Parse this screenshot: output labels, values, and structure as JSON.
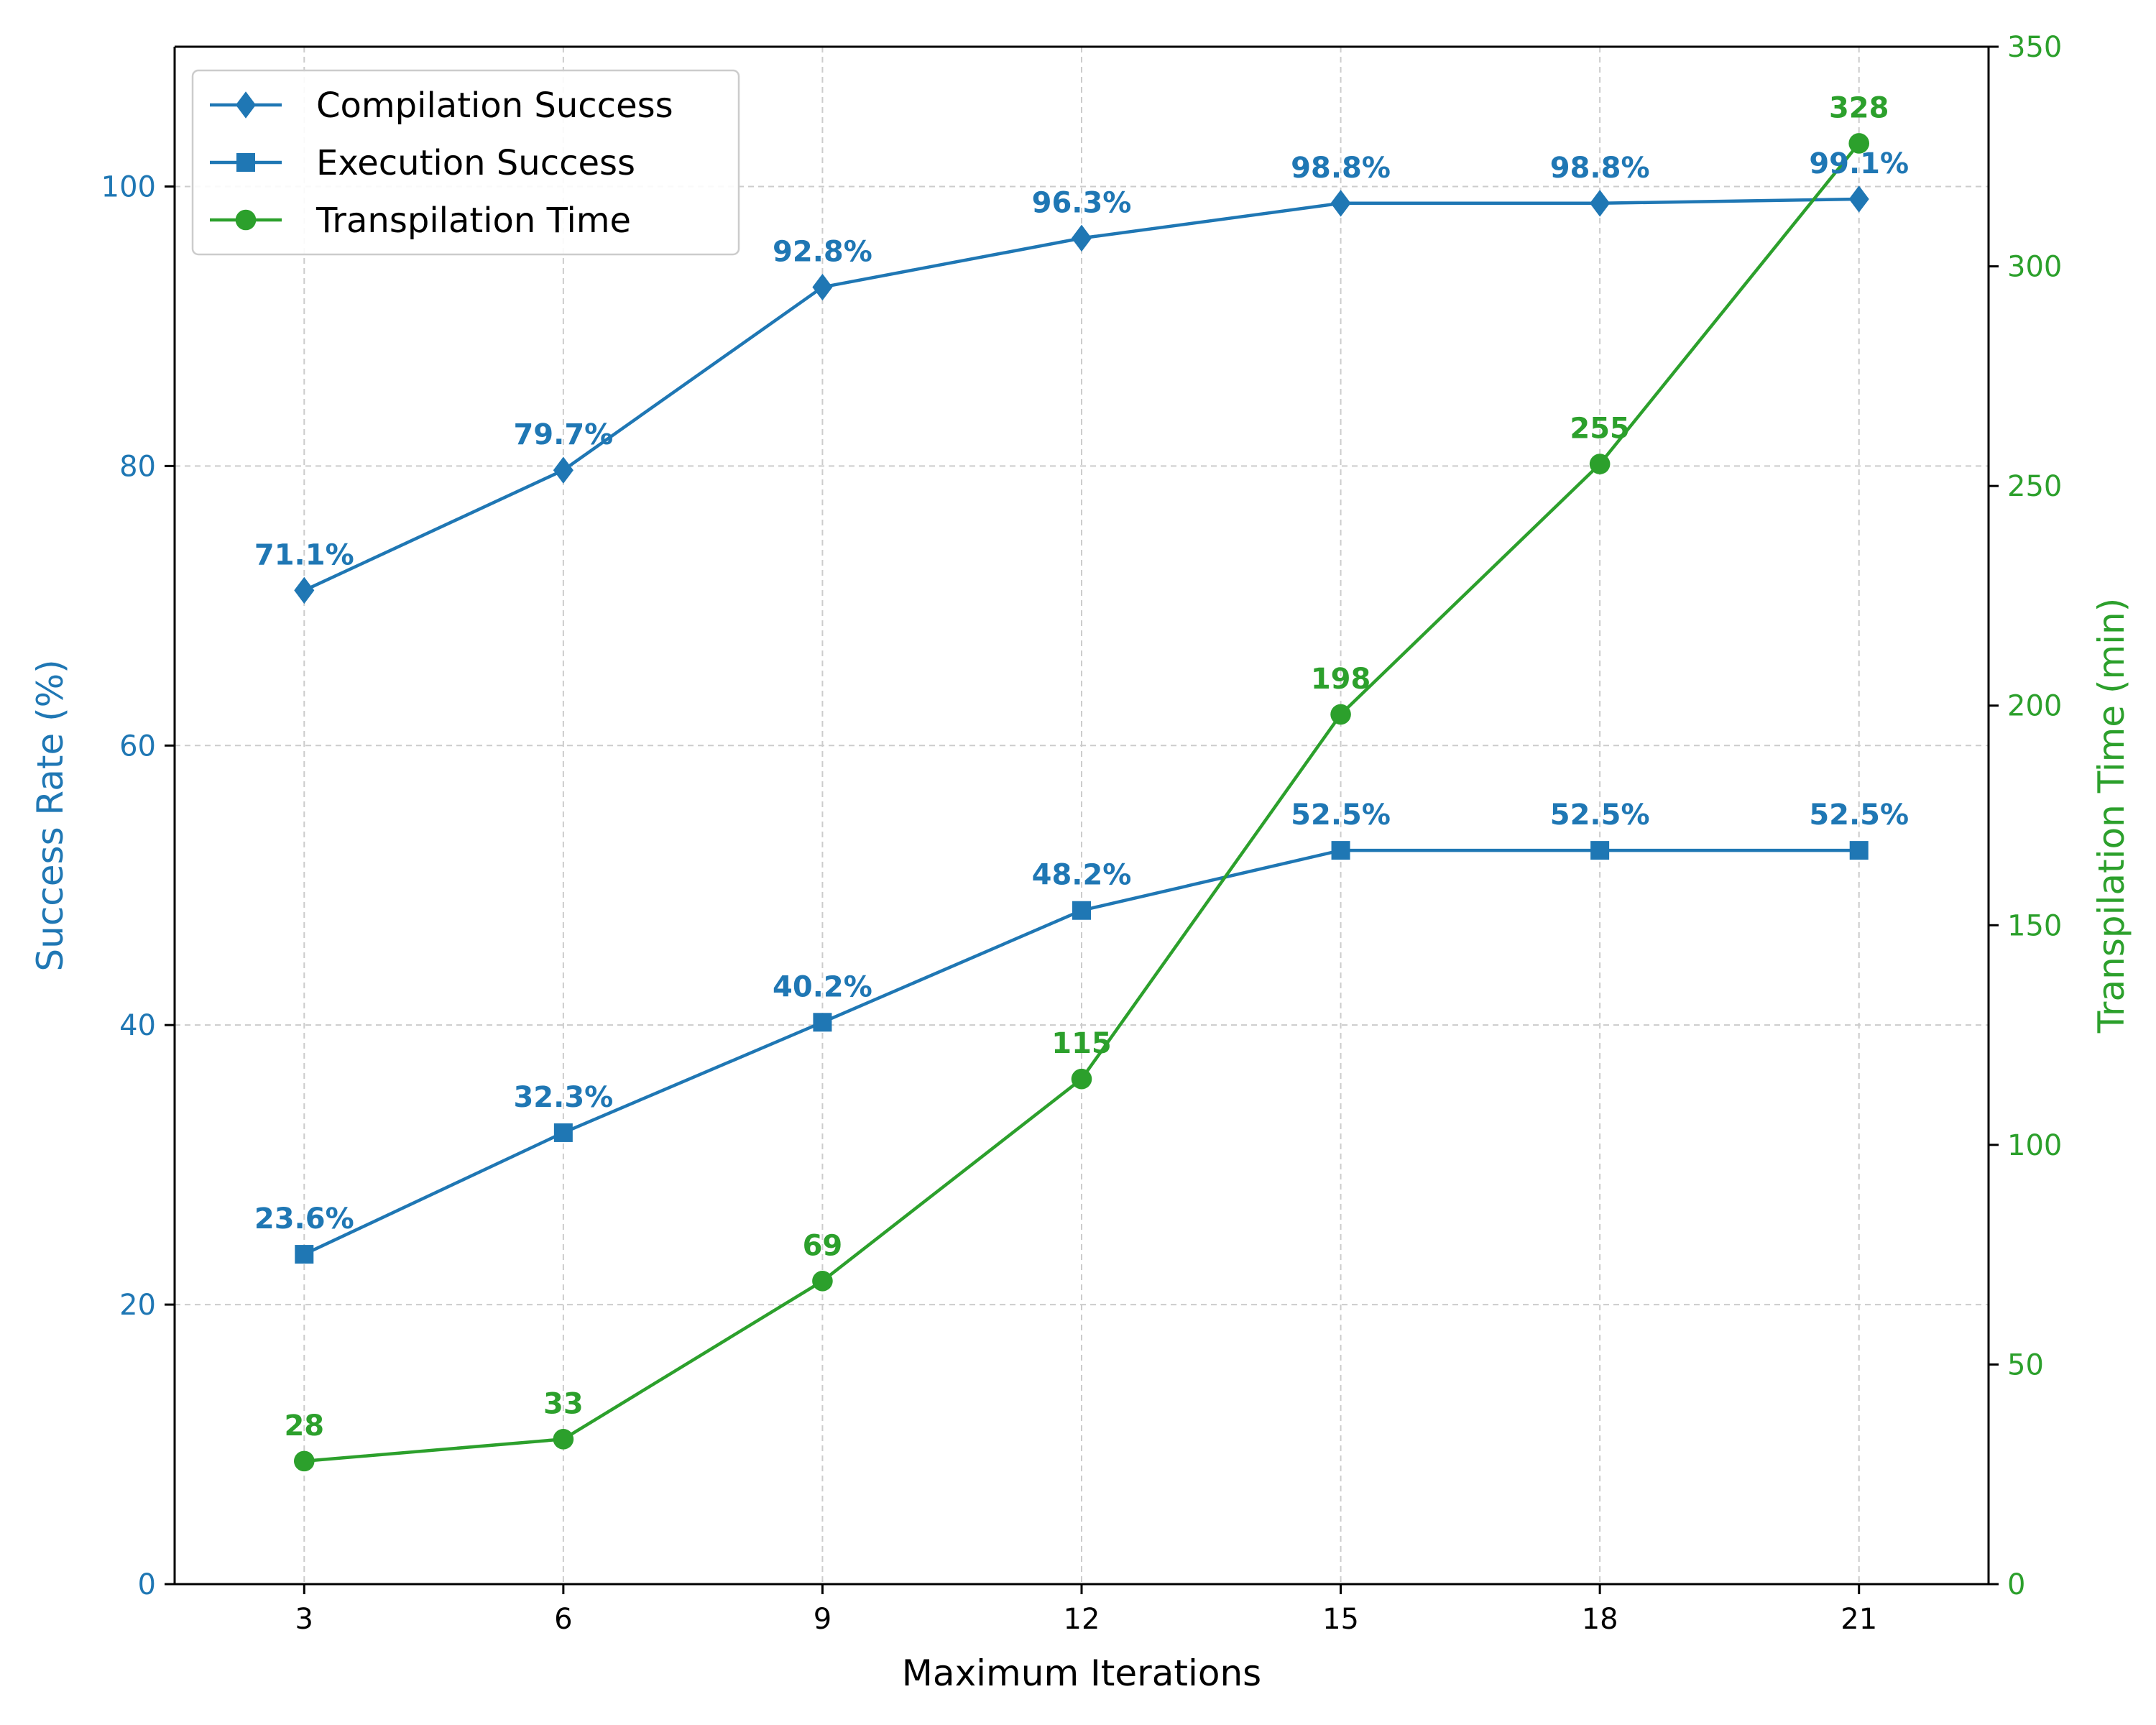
{
  "chart_data": {
    "type": "line",
    "x": [
      3,
      6,
      9,
      12,
      15,
      18,
      21
    ],
    "xlabel": "Maximum Iterations",
    "ylabel_left": "Success Rate (%)",
    "ylabel_right": "Transpilation Time (min)",
    "ylim_left": [
      0,
      110
    ],
    "ylim_right": [
      0,
      350
    ],
    "yticks_left": [
      0,
      20,
      40,
      60,
      80,
      100
    ],
    "yticks_right": [
      0,
      50,
      100,
      150,
      200,
      250,
      300,
      350
    ],
    "grid": true,
    "legend_position": "top-left",
    "colors": {
      "success": "#1f77b4",
      "time": "#2ca02c"
    },
    "series": [
      {
        "name": "Compilation Success",
        "axis": "left",
        "marker": "diamond",
        "values": [
          71.1,
          79.7,
          92.8,
          96.3,
          98.8,
          98.8,
          99.1
        ],
        "labels": [
          "71.1%",
          "79.7%",
          "92.8%",
          "96.3%",
          "98.8%",
          "98.8%",
          "99.1%"
        ]
      },
      {
        "name": "Execution Success",
        "axis": "left",
        "marker": "square",
        "values": [
          23.6,
          32.3,
          40.2,
          48.2,
          52.5,
          52.5,
          52.5
        ],
        "labels": [
          "23.6%",
          "32.3%",
          "40.2%",
          "48.2%",
          "52.5%",
          "52.5%",
          "52.5%"
        ]
      },
      {
        "name": "Transpilation Time",
        "axis": "right",
        "marker": "circle",
        "values": [
          28,
          33,
          69,
          115,
          198,
          255,
          328
        ],
        "labels": [
          "28",
          "33",
          "69",
          "115",
          "198",
          "255",
          "328"
        ]
      }
    ]
  }
}
